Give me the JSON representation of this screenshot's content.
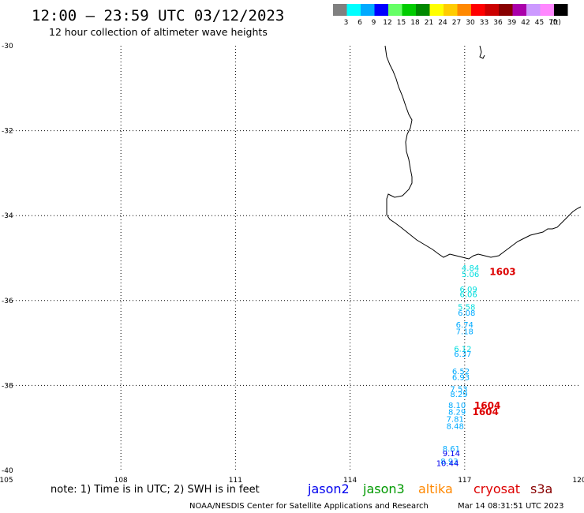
{
  "header": {
    "title": "12:00 — 23:59 UTC 03/12/2023",
    "subtitle": "12 hour collection of altimeter wave heights"
  },
  "legend": {
    "unit": "(ft)",
    "bins": [
      {
        "label": "3",
        "color": "#808080"
      },
      {
        "label": "6",
        "color": "#00ffff"
      },
      {
        "label": "9",
        "color": "#00aaff"
      },
      {
        "label": "12",
        "color": "#0000ff"
      },
      {
        "label": "15",
        "color": "#66ff66"
      },
      {
        "label": "18",
        "color": "#00cc00"
      },
      {
        "label": "21",
        "color": "#008800"
      },
      {
        "label": "24",
        "color": "#ffff00"
      },
      {
        "label": "27",
        "color": "#ffcc00"
      },
      {
        "label": "30",
        "color": "#ff8800"
      },
      {
        "label": "33",
        "color": "#ff0000"
      },
      {
        "label": "36",
        "color": "#cc0000"
      },
      {
        "label": "39",
        "color": "#880000"
      },
      {
        "label": "42",
        "color": "#aa00aa"
      },
      {
        "label": "45",
        "color": "#cc99ff"
      },
      {
        "label": "70",
        "color": "#ff88ff"
      },
      {
        "label": "",
        "color": "#000000"
      }
    ]
  },
  "map": {
    "lon_range": [
      105,
      120
    ],
    "lat_range": [
      -40,
      -30
    ],
    "lon_ticks": [
      "105",
      "108",
      "111",
      "114",
      "117",
      "120"
    ],
    "lat_ticks": [
      "-30",
      "-32",
      "-34",
      "-36",
      "-38",
      "-40"
    ]
  },
  "wave_points": [
    {
      "value": "4.84",
      "lon": 117.15,
      "lat": -35.3,
      "color": "#00dddd"
    },
    {
      "value": "5.06",
      "lon": 117.15,
      "lat": -35.45,
      "color": "#00dddd"
    },
    {
      "value": "6.09",
      "lon": 117.1,
      "lat": -35.8,
      "color": "#00dddd"
    },
    {
      "value": "6.06",
      "lon": 117.1,
      "lat": -35.92,
      "color": "#00dddd"
    },
    {
      "value": "5.58",
      "lon": 117.05,
      "lat": -36.22,
      "color": "#00dddd"
    },
    {
      "value": "6.08",
      "lon": 117.05,
      "lat": -36.36,
      "color": "#00aaff"
    },
    {
      "value": "6.74",
      "lon": 117.0,
      "lat": -36.64,
      "color": "#00aaff"
    },
    {
      "value": "7.18",
      "lon": 117.0,
      "lat": -36.79,
      "color": "#00aaff"
    },
    {
      "value": "6.12",
      "lon": 116.95,
      "lat": -37.2,
      "color": "#00dddd"
    },
    {
      "value": "6.37",
      "lon": 116.95,
      "lat": -37.32,
      "color": "#00aaff"
    },
    {
      "value": "6.52",
      "lon": 116.9,
      "lat": -37.73,
      "color": "#00aaff"
    },
    {
      "value": "6.93",
      "lon": 116.9,
      "lat": -37.87,
      "color": "#00aaff"
    },
    {
      "value": "7.53",
      "lon": 116.85,
      "lat": -38.15,
      "color": "#00aaff"
    },
    {
      "value": "8.29",
      "lon": 116.85,
      "lat": -38.27,
      "color": "#00aaff"
    },
    {
      "value": "8.10",
      "lon": 116.8,
      "lat": -38.53,
      "color": "#00aaff"
    },
    {
      "value": "8.29",
      "lon": 116.8,
      "lat": -38.69,
      "color": "#00aaff"
    },
    {
      "value": "7.81",
      "lon": 116.75,
      "lat": -38.86,
      "color": "#00aaff"
    },
    {
      "value": "8.48",
      "lon": 116.75,
      "lat": -39.02,
      "color": "#00aaff"
    },
    {
      "value": "8.61",
      "lon": 116.65,
      "lat": -39.55,
      "color": "#00aaff"
    },
    {
      "value": "9.14",
      "lon": 116.65,
      "lat": -39.67,
      "color": "#0000ee"
    },
    {
      "value": "8.93",
      "lon": 116.6,
      "lat": -39.85,
      "color": "#00aaff"
    },
    {
      "value": "10.44",
      "lon": 116.55,
      "lat": -39.9,
      "color": "#0000ee"
    }
  ],
  "time_labels": [
    {
      "text": "1603",
      "lon": 117.65,
      "lat": -35.4
    },
    {
      "text": "1604",
      "lon": 117.25,
      "lat": -38.55
    },
    {
      "text": "1604",
      "lon": 117.2,
      "lat": -38.7
    }
  ],
  "footer": {
    "note": "note: 1) Time is in UTC; 2) SWH is in feet",
    "satellites": [
      {
        "name": "jason2",
        "color": "#0000ee"
      },
      {
        "name": "jason3",
        "color": "#009900"
      },
      {
        "name": "altika",
        "color": "#ff8800"
      },
      {
        "name": "cryosat",
        "color": "#dd0000"
      },
      {
        "name": "s3a",
        "color": "#880000"
      }
    ],
    "credit": "NOAA/NESDIS Center for Satellite Applications and Research",
    "timestamp": "Mar 14 08:31:51 UTC 2023"
  }
}
